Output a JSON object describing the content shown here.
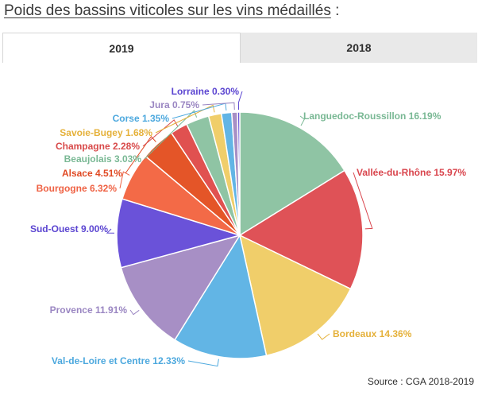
{
  "page": {
    "title": "Poids des bassins viticoles sur les vins médaillés",
    "title_suffix": " :",
    "tabs": [
      {
        "label": "2019",
        "active": true
      },
      {
        "label": "2018",
        "active": false
      }
    ],
    "source": "Source : CGA 2018-2019"
  },
  "chart_data": {
    "type": "pie",
    "title": "",
    "categories": [
      "Languedoc-Roussillon",
      "Vallée-du-Rhône",
      "Bordeaux",
      "Val-de-Loire et Centre",
      "Provence",
      "Sud-Ouest",
      "Bourgogne",
      "Alsace",
      "Champagne",
      "Beaujolais",
      "Savoie-Bugey",
      "Corse",
      "Jura",
      "Lorraine"
    ],
    "values": [
      16.19,
      15.97,
      14.36,
      12.33,
      11.91,
      9.0,
      6.32,
      4.51,
      2.28,
      3.03,
      1.68,
      1.35,
      0.75,
      0.3
    ],
    "labels": [
      "Languedoc-Roussillon 16.19%",
      "Vallée-du-Rhône 15.97%",
      "Bordeaux 14.36%",
      "Val-de-Loire et Centre 12.33%",
      "Provence 11.91%",
      "Sud-Ouest 9.00%",
      "Bourgogne 6.32%",
      "Alsace 4.51%",
      "Champagne 2.28%",
      "Beaujolais 3.03%",
      "Savoie-Bugey 1.68%",
      "Corse 1.35%",
      "Jura 0.75%",
      "Lorraine 0.30%"
    ],
    "colors": [
      "#8fc4a4",
      "#df5257",
      "#f0ce6a",
      "#62b5e5",
      "#a78fc5",
      "#6a52d9",
      "#f36a47",
      "#e45528",
      "#e05150",
      "#8fc4a4",
      "#f0ce6a",
      "#62b5e5",
      "#a78fc5",
      "#6a52d9"
    ],
    "label_colors": [
      "#79b894",
      "#d9454d",
      "#e5b13a",
      "#4ca8de",
      "#9a86c2",
      "#5b45d1",
      "#ef6244",
      "#e04a24",
      "#d84a4a",
      "#79b894",
      "#e5b13a",
      "#4ca8de",
      "#9a86c2",
      "#5b45d1"
    ]
  }
}
